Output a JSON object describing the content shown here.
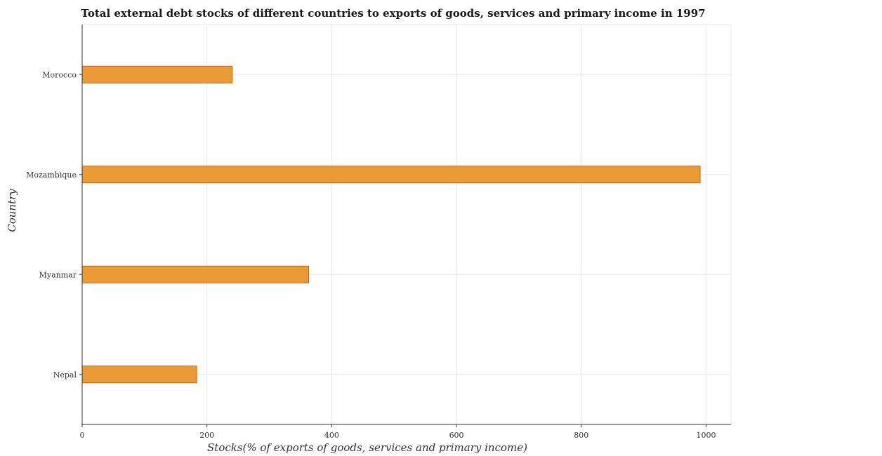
{
  "chart_data": {
    "type": "bar",
    "orientation": "horizontal",
    "title": "Total external debt stocks of different countries to exports of goods, services and primary income in 1997",
    "xlabel": "Stocks(% of exports of goods, services and primary income)",
    "ylabel": "Country",
    "categories": [
      "Morocco",
      "Mozambique",
      "Myanmar",
      "Nepal"
    ],
    "values": [
      240.5,
      990.5,
      363.0,
      183.5
    ],
    "xlim": [
      0,
      1040
    ],
    "xticks": [
      0,
      200,
      400,
      600,
      800,
      1000
    ],
    "grid": true,
    "bar_color": "#ea9a37",
    "bar_edge_color": "#c0661a"
  }
}
